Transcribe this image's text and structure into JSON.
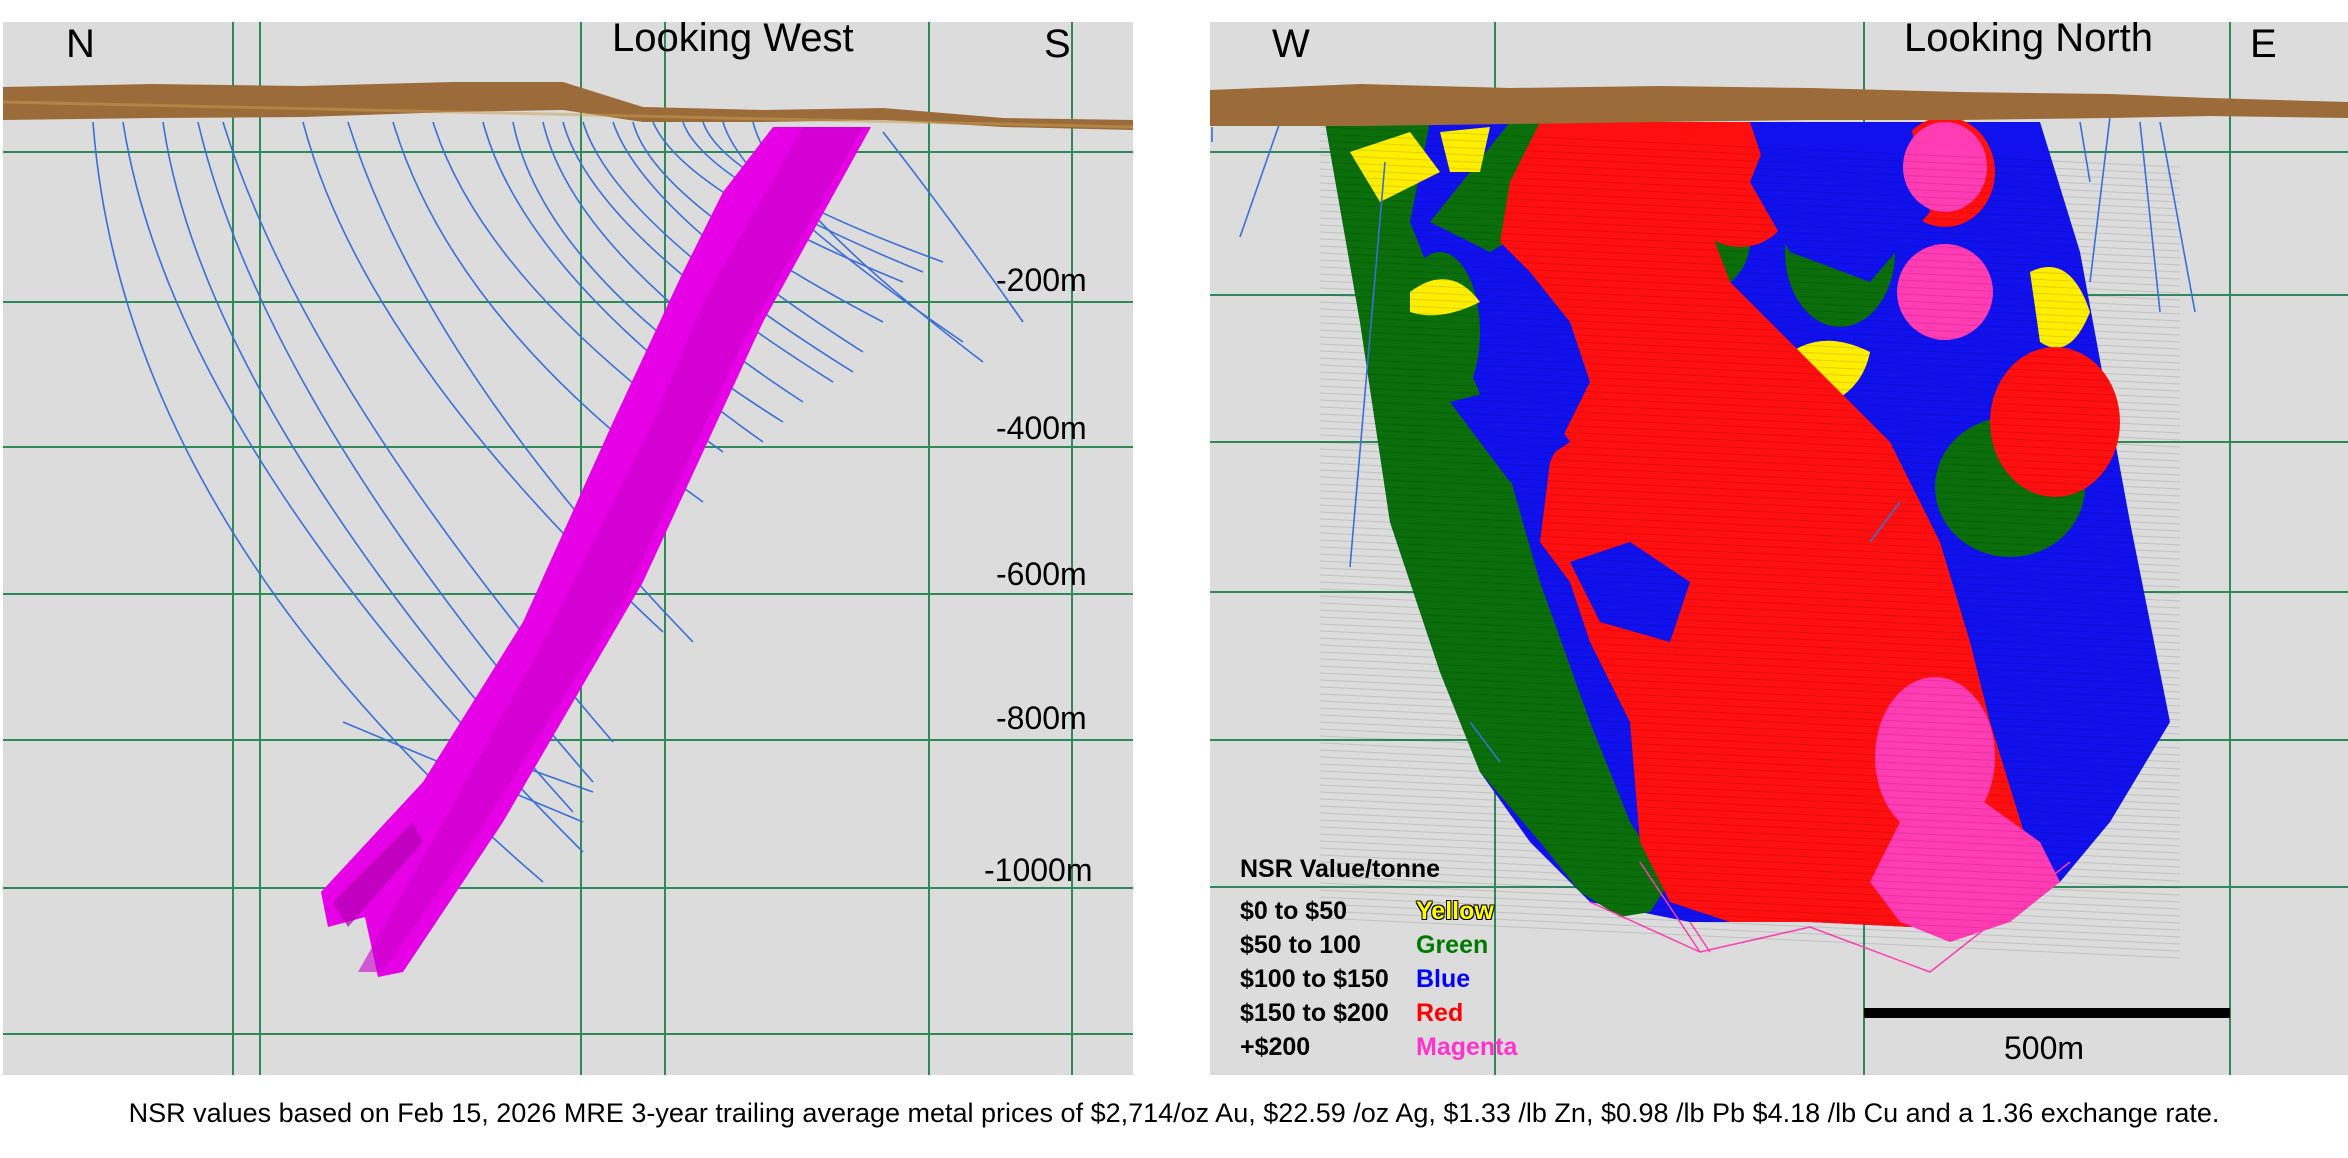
{
  "left_section": {
    "title": "Looking West",
    "corner_left": "N",
    "corner_right": "S",
    "depth_labels": [
      "-200m",
      "-400m",
      "-600m",
      "-800m",
      "-1000m"
    ]
  },
  "right_section": {
    "title": "Looking North",
    "corner_left": "W",
    "corner_right": "E",
    "scale_bar_label": "500m"
  },
  "legend": {
    "title": "NSR Value/tonne",
    "items": [
      {
        "range": "$0 to $50",
        "color_name": "Yellow",
        "color": "#ffff00"
      },
      {
        "range": "$50 to 100",
        "color_name": "Green",
        "color": "#007a00"
      },
      {
        "range": "$100 to $150",
        "color_name": "Blue",
        "color": "#0000ff"
      },
      {
        "range": "$150 to $200",
        "color_name": "Red",
        "color": "#ff0000"
      },
      {
        "range": "+$200",
        "color_name": "Magenta",
        "color": "#ff33cc"
      }
    ]
  },
  "caption": "NSR values based on Feb 15, 2026 MRE 3-year trailing average metal prices of $2,714/oz Au, $22.59 /oz Ag, $1.33 /lb Zn, $0.98 /lb Pb $4.18 /lb Cu and a 1.36 exchange rate.",
  "colors": {
    "background": "#dcdcdc",
    "grid": "#2e8b57",
    "surface": "#9b6b3a",
    "drillholes": "#3a6fd8",
    "magenta_body": "#e600e6",
    "yellow": "#ffff00",
    "green": "#007a00",
    "blue": "#1111ee",
    "red": "#ff0f0f",
    "pink": "#ff3cb4"
  }
}
